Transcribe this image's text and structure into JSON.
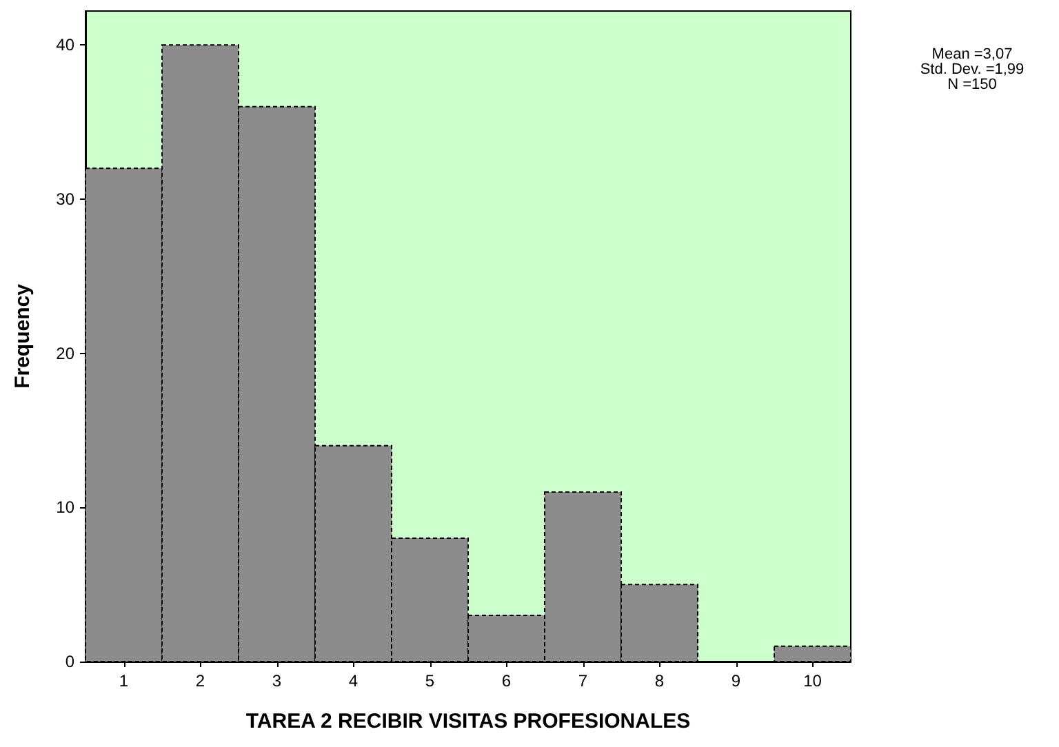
{
  "chart_data": {
    "type": "histogram",
    "xlabel": "TAREA 2 RECIBIR VISITAS PROFESIONALES",
    "ylabel": "Frequency",
    "bins": [
      0.5,
      1.5,
      2.5,
      3.5,
      4.5,
      5.5,
      6.5,
      7.5,
      8.5,
      9.5,
      10.5
    ],
    "values": [
      32,
      40,
      36,
      14,
      8,
      3,
      11,
      5,
      0,
      1
    ],
    "color": "#8c8c8c",
    "line_style": "dashed",
    "grid": false,
    "xlim": [
      0.5,
      10.5
    ],
    "xticks": [
      1,
      2,
      3,
      4,
      5,
      6,
      7,
      8,
      9,
      10
    ],
    "ylim": [
      0,
      42.2
    ],
    "yticks": [
      0,
      10,
      20,
      30,
      40
    ],
    "annotations": [
      "Mean =3,07",
      "Std. Dev. =1,99",
      "N =150"
    ]
  }
}
